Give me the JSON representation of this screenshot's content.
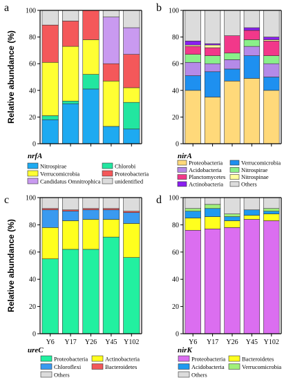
{
  "figure": {
    "ylabel": "Relative abundance (%)"
  },
  "panels": [
    {
      "letter": "a",
      "chart_data": {
        "type": "bar",
        "stacked": true,
        "gene": "nrfA",
        "categories": [
          "Y6",
          "Y17",
          "Y26",
          "Y45",
          "Y102"
        ],
        "ylim": [
          0,
          100
        ],
        "yticks": [
          0,
          20,
          40,
          60,
          80,
          100
        ],
        "show_category_labels": false,
        "show_ylabel": true,
        "series": [
          {
            "name": "Nitrospirae",
            "color": "#1EAAF1",
            "values": [
              18,
              30,
              41,
              13,
              11
            ]
          },
          {
            "name": "Chlorobi",
            "color": "#22E6A0",
            "values": [
              3,
              2,
              11,
              0,
              20
            ]
          },
          {
            "name": "Verrucomicrobia",
            "color": "#FFFF33",
            "values": [
              40,
              41,
              26,
              34,
              11
            ]
          },
          {
            "name": "Proteobacteria",
            "color": "#F4585A",
            "values": [
              28,
              19,
              22,
              13,
              25
            ]
          },
          {
            "name": "Candidatus Omnitrophica",
            "color": "#C99AF0",
            "values": [
              0,
              0,
              0,
              35,
              20
            ]
          },
          {
            "name": "unidentified",
            "color": "#DCDCDC",
            "values": [
              11,
              8,
              0,
              5,
              13
            ]
          }
        ],
        "legend_order": [
          "Nitrospirae",
          "Chlorobi",
          "Verrucomicrobia",
          "Proteobacteria",
          "Candidatus Omnitrophica",
          "unidentified"
        ]
      }
    },
    {
      "letter": "b",
      "chart_data": {
        "type": "bar",
        "stacked": true,
        "gene": "nirA",
        "categories": [
          "Y6",
          "Y17",
          "Y26",
          "Y45",
          "Y102"
        ],
        "ylim": [
          0,
          100
        ],
        "yticks": [
          0,
          20,
          40,
          60,
          80,
          100
        ],
        "show_category_labels": false,
        "show_ylabel": false,
        "series": [
          {
            "name": "Proteobacteria",
            "color": "#FFD97A",
            "values": [
              40,
              35,
              47,
              49,
              40
            ]
          },
          {
            "name": "Verrucomicrobia",
            "color": "#1E90F0",
            "values": [
              11,
              19,
              9,
              17,
              10
            ]
          },
          {
            "name": "Acidobacteria",
            "color": "#B58AE8",
            "values": [
              10,
              6,
              7,
              7,
              10
            ]
          },
          {
            "name": "Nitrospirae",
            "color": "#8AF08A",
            "values": [
              6,
              6,
              5,
              5,
              6
            ]
          },
          {
            "name": "Planctomycetes",
            "color": "#F2388A",
            "values": [
              6,
              6,
              13,
              7,
              11
            ]
          },
          {
            "name": "Nitrospinae",
            "color": "#FFFFA0",
            "values": [
              1,
              2,
              0,
              0,
              1
            ]
          },
          {
            "name": "Actinobacteria",
            "color": "#8A1EF0",
            "values": [
              3,
              1,
              0,
              2,
              2
            ]
          },
          {
            "name": "Others",
            "color": "#DCDCDC",
            "values": [
              23,
              25,
              19,
              13,
              20
            ]
          }
        ],
        "legend_order": [
          "Proteobacteria",
          "Verrucomicrobia",
          "Acidobacteria",
          "Nitrospirae",
          "Planctomycetes",
          "Nitrospinae",
          "Actinobacteria",
          "Others"
        ]
      }
    },
    {
      "letter": "c",
      "chart_data": {
        "type": "bar",
        "stacked": true,
        "gene": "ureC",
        "categories": [
          "Y6",
          "Y17",
          "Y26",
          "Y45",
          "Y102"
        ],
        "ylim": [
          0,
          100
        ],
        "yticks": [
          0,
          20,
          40,
          60,
          80,
          100
        ],
        "show_category_labels": true,
        "show_ylabel": true,
        "series": [
          {
            "name": "Proteobacteria",
            "color": "#22F0A0",
            "values": [
              55,
              62,
              62,
              71,
              56
            ]
          },
          {
            "name": "Actinobacteria",
            "color": "#FFFF1E",
            "values": [
              23,
              21,
              22,
              13,
              25
            ]
          },
          {
            "name": "Chloroflexi",
            "color": "#3A9AF0",
            "values": [
              13,
              7,
              7,
              7,
              8
            ]
          },
          {
            "name": "Bacteroidetes",
            "color": "#F2585A",
            "values": [
              1,
              1,
              1,
              1,
              1
            ]
          },
          {
            "name": "Others",
            "color": "#DCDCDC",
            "values": [
              8,
              9,
              8,
              8,
              10
            ]
          }
        ],
        "legend_order": [
          "Proteobacteria",
          "Actinobacteria",
          "Chloroflexi",
          "Bacteroidetes",
          "Others"
        ]
      }
    },
    {
      "letter": "d",
      "chart_data": {
        "type": "bar",
        "stacked": true,
        "gene": "nirK",
        "categories": [
          "Y6",
          "Y17",
          "Y26",
          "Y45",
          "Y102"
        ],
        "ylim": [
          0,
          100
        ],
        "yticks": [
          0,
          20,
          40,
          60,
          80,
          100
        ],
        "show_category_labels": true,
        "show_ylabel": false,
        "series": [
          {
            "name": "Proteobacteria",
            "color": "#DB6EF0",
            "values": [
              76,
              77,
              78,
              84,
              83
            ]
          },
          {
            "name": "Bacteroidetes",
            "color": "#FFFF1E",
            "values": [
              9,
              9,
              5,
              3,
              5
            ]
          },
          {
            "name": "Acidobacteria",
            "color": "#1E9AF0",
            "values": [
              5,
              6,
              3,
              4,
              2
            ]
          },
          {
            "name": "Verrucomicrobia",
            "color": "#A0F07A",
            "values": [
              2,
              3,
              2,
              0,
              2
            ]
          },
          {
            "name": "Others",
            "color": "#DCDCDC",
            "values": [
              8,
              5,
              12,
              9,
              8
            ]
          }
        ],
        "legend_order": [
          "Proteobacteria",
          "Bacteroidetes",
          "Acidobacteria",
          "Verrucomicrobia",
          "Others"
        ]
      }
    }
  ]
}
